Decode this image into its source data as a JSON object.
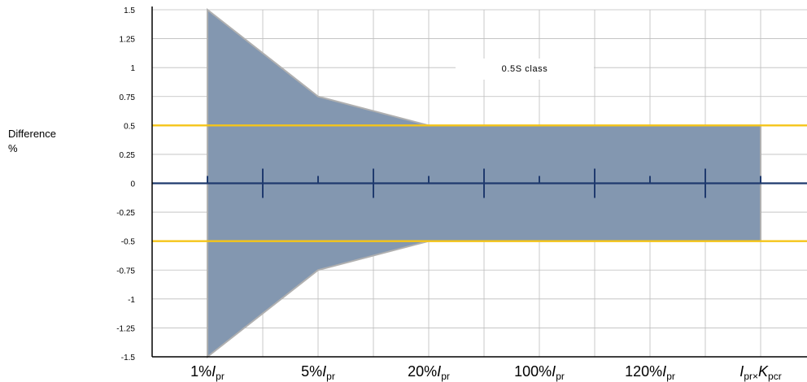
{
  "chart_data": {
    "type": "area",
    "title": "",
    "ylabel_line1": "Difference",
    "ylabel_line2": "%",
    "annotation": "0.5S class",
    "ylim": [
      -1.5,
      1.5
    ],
    "yticks": [
      1.5,
      1.25,
      1,
      0.75,
      0.5,
      0.25,
      0,
      -0.25,
      -0.5,
      -0.75,
      -1,
      -1.25,
      -1.5
    ],
    "ytick_labels": [
      "1.5",
      "1.25",
      "1",
      "0.75",
      "0.5",
      "0.25",
      "0",
      "-0.25",
      "-0.5",
      "-0.75",
      "-1",
      "-1.25",
      "-1.5"
    ],
    "grid": true,
    "categories": [
      {
        "main": "1%",
        "italic": "I",
        "sub": "pr",
        "italic2": "",
        "sub2": ""
      },
      {
        "main": "5%",
        "italic": "I",
        "sub": "pr",
        "italic2": "",
        "sub2": ""
      },
      {
        "main": "20%",
        "italic": "I",
        "sub": "pr",
        "italic2": "",
        "sub2": ""
      },
      {
        "main": "100%",
        "italic": "I",
        "sub": "pr",
        "italic2": "",
        "sub2": ""
      },
      {
        "main": "120%",
        "italic": "I",
        "sub": "pr",
        "italic2": "",
        "sub2": ""
      },
      {
        "main": "",
        "italic": "I",
        "sub": "pr×",
        "italic2": "K",
        "sub2": "pcr"
      }
    ],
    "series": [
      {
        "values_upper": [
          1.5,
          0.75,
          0.5,
          0.5,
          0.5,
          0.5
        ],
        "values_lower": [
          -1.5,
          -0.75,
          -0.5,
          -0.5,
          -0.5,
          -0.5
        ]
      }
    ],
    "reference_lines": [
      0.5,
      0,
      -0.5
    ]
  },
  "colors": {
    "band_fill": "#8397b0",
    "band_edge": "#b0b0b0",
    "limit_line": "#f5c518",
    "zero_line": "#1f3a6e",
    "grid": "#bdbdbd",
    "axis": "#000000"
  }
}
